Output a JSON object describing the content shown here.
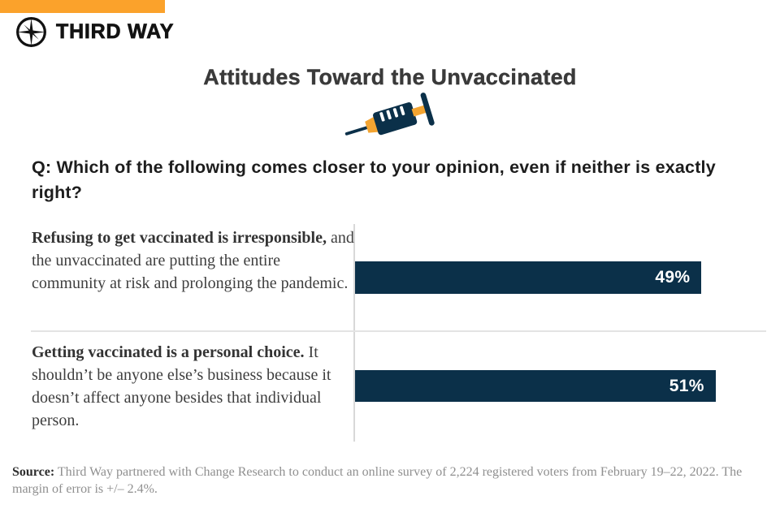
{
  "brand": {
    "name": "THIRD WAY",
    "accent_orange": "#FBA22B",
    "navy": "#0B3049",
    "logo_icon": "compass-star-icon"
  },
  "header": {
    "title": "Attitudes Toward the Unvaccinated",
    "decoration_icon": "syringe-icon"
  },
  "question": "Q: Which of the following comes closer to your opinion, even if neither is exactly right?",
  "chart_data": {
    "type": "bar",
    "orientation": "horizontal",
    "title": "Attitudes Toward the Unvaccinated",
    "xlabel": "",
    "ylabel": "",
    "legend": "none",
    "gridlines": false,
    "bar_color": "#0B3049",
    "value_label_color": "#ffffff",
    "categories": [
      {
        "bold": "Refusing to get vaccinated is irresponsible,",
        "rest": " and the unvaccinated are putting the entire community at risk and prolonging the pandemic."
      },
      {
        "bold": "Getting vaccinated is a personal choice.",
        "rest": " It shouldn’t be anyone else’s business because it doesn’t affect anyone besides that individual person."
      }
    ],
    "values": [
      49,
      51
    ],
    "value_labels": [
      "49%",
      "51%"
    ],
    "value_unit": "percent of registered voters"
  },
  "source": {
    "label": "Source:",
    "text": " Third Way partnered with Change Research to conduct an online survey of 2,224 registered voters from February 19–22, 2022. The margin of error is +/– 2.4%."
  }
}
